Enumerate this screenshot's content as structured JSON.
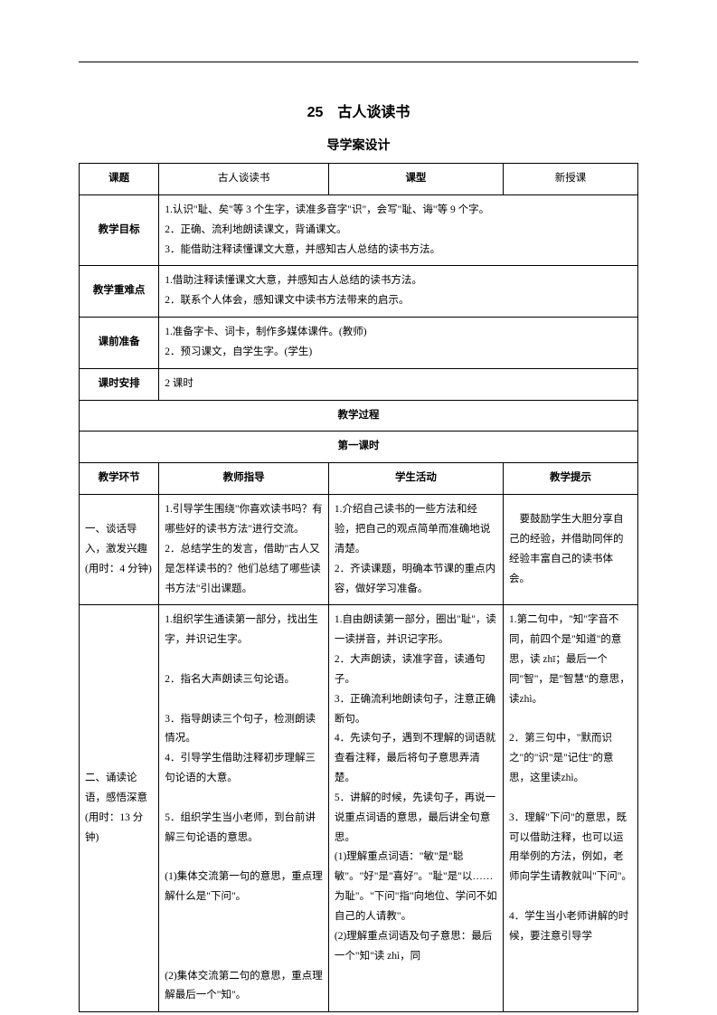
{
  "title": "25　古人谈读书",
  "subtitle": "导学案设计",
  "headerRow": {
    "c1": "课题",
    "c2": "古人谈读书",
    "c3": "课型",
    "c4": "新授课"
  },
  "goalsLabel": "教学目标",
  "goals": "1.认识\"耻、矣\"等 3 个生字，读准多音字\"识\"，会写\"耻、诲\"等 9 个字。\n2．正确、流利地朗读课文，背诵课文。\n3．能借助注释读懂课文大意，并感知古人总结的读书方法。",
  "difficultyLabel": "教学重难点",
  "difficulty": "1.借助注释读懂课文大意，并感知古人总结的读书方法。\n2．联系个人体会，感知课文中读书方法带来的启示。",
  "prepLabel": "课前准备",
  "prep": "1.准备字卡、词卡，制作多媒体课件。(教师)\n2．预习课文，自学生字。(学生)",
  "scheduleLabel": "课时安排",
  "schedule": "2 课时",
  "processLabel": "教学过程",
  "lesson1Label": "第一课时",
  "tableHeader": {
    "c1": "教学环节",
    "c2": "教师指导",
    "c3": "学生活动",
    "c4": "教学提示"
  },
  "row1": {
    "label": "一、谈话导入，激发兴趣(用时：4 分钟)",
    "guide": "1.引导学生围绕\"你喜欢读书吗？有哪些好的读书方法\"进行交流。\n2．总结学生的发言，借助\"古人又是怎样读书的？他们总结了哪些读书方法\"引出课题。",
    "activity": "1.介绍自己读书的一些方法和经验，把自己的观点简单而准确地说清楚。\n2．齐读课题，明确本节课的重点内容，做好学习准备。",
    "hint": "　要鼓励学生大胆分享自己的经验，并借助同伴的经验丰富自己的读书体会。"
  },
  "row2": {
    "label": "二、诵读论语，感悟深意(用时：13 分钟)",
    "guide": "1.组织学生通读第一部分，找出生字，并识记生字。\n\n2．指名大声朗读三句论语。\n\n3．指导朗读三个句子，检测朗读情况。\n4．引导学生借助注释初步理解三句论语的大意。\n\n5．组织学生当小老师，到台前讲解三句论语的意思。\n\n(1)集体交流第一句的意思，重点理解什么是\"下问\"。\n\n\n\n(2)集体交流第二句的意思，重点理解最后一个\"知\"。",
    "activity": "1.自由朗读第一部分，圈出\"耻\"，读一读拼音，并识记字形。\n2．大声朗读，读准字音，读通句子。\n3．正确流利地朗读句子，注意正确断句。\n4．先读句子，遇到不理解的词语就查看注释，最后将句子意思弄清楚。\n5．讲解的时候，先读句子，再说一说重点词语的意思，最后讲全句意思。\n(1)理解重点词语：\"敏\"是\"聪敏\"。\"好\"是\"喜好\"。\"耻\"是\"以……为耻\"。\"下问\"指\"向地位、学问不如自己的人请教\"。\n(2)理解重点词语及句子意思：最后一个\"知\"读 zhì，同",
    "hint": "1.第二句中，\"知\"字音不同，前四个是\"知道\"的意思，读 zhī；最后一个同\"智\"，是\"智慧\"的意思，读zhì。\n\n2．第三句中，\"默而识之\"的\"识\"是\"记住\"的意思，这里读zhì。\n\n3．理解\"下问\"的意思，既可以借助注释，也可以运用举例的方法，例如，老师向学生请教就叫\"下问\"。\n\n4．学生当小老师讲解的时候，要注意引导学"
  }
}
